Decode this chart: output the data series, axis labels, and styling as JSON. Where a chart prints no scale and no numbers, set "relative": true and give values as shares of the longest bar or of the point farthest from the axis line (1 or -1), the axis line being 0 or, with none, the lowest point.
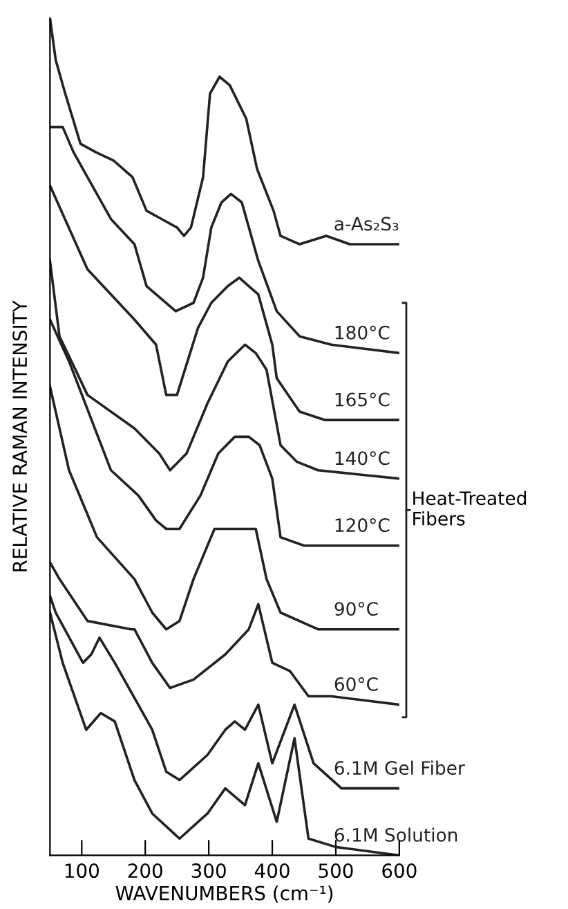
{
  "chart_data": {
    "type": "line",
    "relative": true,
    "xlabel": "WAVENUMBERS (cm⁻¹)",
    "ylabel": "RELATIVE RAMAN INTENSITY",
    "xlim": [
      50,
      600
    ],
    "xticks": [
      100,
      200,
      300,
      400,
      500,
      600
    ],
    "grid": false,
    "legend": false,
    "marker": "none",
    "line_style": "solid",
    "annotations": [
      "Heat-Treated Fibers"
    ],
    "series": [
      {
        "name": "a-As₂S₃",
        "color": "#222222",
        "x": [
          50,
          59,
          74,
          98,
          122,
          150,
          180,
          202,
          226,
          250,
          261,
          272,
          291,
          302,
          317,
          333,
          359,
          376,
          402,
          413,
          443,
          485,
          522,
          600
        ],
        "values": [
          1.0,
          0.95,
          0.91,
          0.85,
          0.84,
          0.83,
          0.81,
          0.77,
          0.76,
          0.75,
          0.74,
          0.75,
          0.81,
          0.91,
          0.93,
          0.92,
          0.88,
          0.82,
          0.77,
          0.74,
          0.73,
          0.74,
          0.73,
          0.73
        ]
      },
      {
        "name": "180°C",
        "color": "#222222",
        "x": [
          50,
          70,
          87,
          146,
          183,
          202,
          248,
          276,
          291,
          304,
          320,
          335,
          352,
          378,
          407,
          443,
          493,
          600
        ],
        "values": [
          0.87,
          0.87,
          0.84,
          0.76,
          0.73,
          0.68,
          0.65,
          0.66,
          0.69,
          0.75,
          0.78,
          0.79,
          0.78,
          0.71,
          0.65,
          0.62,
          0.61,
          0.6
        ]
      },
      {
        "name": "165°C",
        "color": "#222222",
        "x": [
          50,
          109,
          183,
          217,
          233,
          250,
          283,
          304,
          330,
          348,
          363,
          378,
          400,
          407,
          443,
          483,
          600
        ],
        "values": [
          0.8,
          0.7,
          0.64,
          0.61,
          0.55,
          0.55,
          0.63,
          0.66,
          0.68,
          0.69,
          0.68,
          0.67,
          0.61,
          0.57,
          0.53,
          0.52,
          0.52
        ]
      },
      {
        "name": "140°C",
        "color": "#222222",
        "x": [
          50,
          65,
          109,
          183,
          222,
          239,
          265,
          298,
          330,
          357,
          374,
          391,
          413,
          439,
          472,
          600
        ],
        "values": [
          0.71,
          0.62,
          0.55,
          0.51,
          0.48,
          0.46,
          0.48,
          0.54,
          0.59,
          0.61,
          0.6,
          0.58,
          0.49,
          0.47,
          0.46,
          0.45
        ]
      },
      {
        "name": "120°C",
        "color": "#222222",
        "x": [
          50,
          80,
          146,
          189,
          217,
          233,
          254,
          287,
          315,
          341,
          363,
          380,
          400,
          413,
          450,
          600
        ],
        "values": [
          0.64,
          0.59,
          0.46,
          0.43,
          0.4,
          0.39,
          0.39,
          0.43,
          0.48,
          0.5,
          0.5,
          0.49,
          0.45,
          0.38,
          0.37,
          0.37
        ]
      },
      {
        "name": "90°C",
        "color": "#222222",
        "x": [
          50,
          80,
          124,
          183,
          211,
          233,
          254,
          276,
          309,
          348,
          374,
          391,
          413,
          472,
          600
        ],
        "values": [
          0.56,
          0.46,
          0.38,
          0.33,
          0.29,
          0.27,
          0.28,
          0.33,
          0.39,
          0.39,
          0.39,
          0.33,
          0.29,
          0.27,
          0.27
        ]
      },
      {
        "name": "60°C",
        "color": "#222222",
        "x": [
          50,
          65,
          109,
          178,
          183,
          211,
          239,
          276,
          326,
          363,
          378,
          400,
          428,
          457,
          493,
          600
        ],
        "values": [
          0.35,
          0.33,
          0.28,
          0.27,
          0.27,
          0.23,
          0.2,
          0.21,
          0.24,
          0.27,
          0.3,
          0.23,
          0.22,
          0.19,
          0.19,
          0.18
        ]
      },
      {
        "name": "6.1M Gel Fiber",
        "color": "#222222",
        "x": [
          50,
          59,
          102,
          115,
          128,
          152,
          189,
          211,
          233,
          254,
          298,
          326,
          341,
          357,
          378,
          400,
          435,
          465,
          509,
          600
        ],
        "values": [
          0.31,
          0.29,
          0.23,
          0.24,
          0.26,
          0.23,
          0.18,
          0.15,
          0.1,
          0.09,
          0.12,
          0.15,
          0.16,
          0.15,
          0.18,
          0.11,
          0.18,
          0.11,
          0.08,
          0.08
        ]
      },
      {
        "name": "6.1M Solution",
        "color": "#222222",
        "x": [
          50,
          70,
          107,
          130,
          152,
          183,
          211,
          254,
          298,
          326,
          357,
          378,
          407,
          435,
          457,
          500,
          600
        ],
        "values": [
          0.29,
          0.23,
          0.15,
          0.17,
          0.16,
          0.09,
          0.05,
          0.02,
          0.05,
          0.08,
          0.06,
          0.11,
          0.04,
          0.14,
          0.02,
          0.01,
          0.0
        ]
      }
    ]
  }
}
